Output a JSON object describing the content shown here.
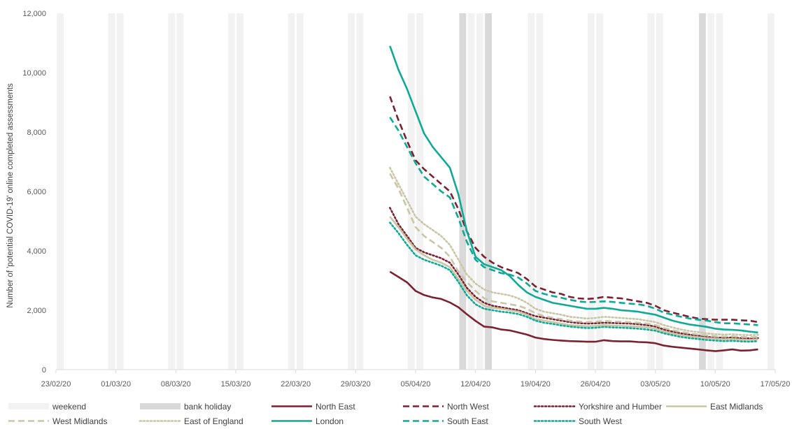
{
  "chart_data": {
    "type": "line",
    "title": "",
    "xlabel": "",
    "ylabel": "Number of 'potential COVID-19' online completed assessments",
    "ylim": [
      0,
      12000
    ],
    "yticks": [
      0,
      2000,
      4000,
      6000,
      8000,
      10000,
      12000
    ],
    "ytick_labels": [
      "0",
      "2,000",
      "4,000",
      "6,000",
      "8,000",
      "10,000",
      "12,000"
    ],
    "xlim": [
      "2020-02-23",
      "2020-05-17"
    ],
    "xticks": [
      "2020-02-23",
      "2020-03-01",
      "2020-03-08",
      "2020-03-15",
      "2020-03-22",
      "2020-03-29",
      "2020-04-05",
      "2020-04-12",
      "2020-04-19",
      "2020-04-26",
      "2020-05-03",
      "2020-05-10",
      "2020-05-17"
    ],
    "xtick_labels": [
      "23/02/20",
      "01/03/20",
      "08/03/20",
      "15/03/20",
      "22/03/20",
      "29/03/20",
      "05/04/20",
      "12/04/20",
      "19/04/20",
      "26/04/20",
      "03/05/20",
      "10/05/20",
      "17/05/20"
    ],
    "legend_position": "bottom",
    "weekend_label": "weekend",
    "weekend_color": "#f2f2f2",
    "bank_holiday_label": "bank holiday",
    "bank_holiday_color": "#d9d9d9",
    "weekends": [
      "2020-02-23",
      "2020-02-29",
      "2020-03-01",
      "2020-03-07",
      "2020-03-08",
      "2020-03-14",
      "2020-03-15",
      "2020-03-21",
      "2020-03-22",
      "2020-03-28",
      "2020-03-29",
      "2020-04-04",
      "2020-04-05",
      "2020-04-11",
      "2020-04-12",
      "2020-04-18",
      "2020-04-19",
      "2020-04-25",
      "2020-04-26",
      "2020-05-02",
      "2020-05-03",
      "2020-05-09",
      "2020-05-10",
      "2020-05-16"
    ],
    "bank_holidays": [
      "2020-04-10",
      "2020-04-13",
      "2020-05-08"
    ],
    "x": [
      "2020-04-02",
      "2020-04-03",
      "2020-04-04",
      "2020-04-05",
      "2020-04-06",
      "2020-04-07",
      "2020-04-08",
      "2020-04-09",
      "2020-04-10",
      "2020-04-11",
      "2020-04-12",
      "2020-04-13",
      "2020-04-14",
      "2020-04-15",
      "2020-04-16",
      "2020-04-17",
      "2020-04-18",
      "2020-04-19",
      "2020-04-20",
      "2020-04-21",
      "2020-04-22",
      "2020-04-23",
      "2020-04-24",
      "2020-04-25",
      "2020-04-26",
      "2020-04-27",
      "2020-04-28",
      "2020-04-29",
      "2020-04-30",
      "2020-05-01",
      "2020-05-02",
      "2020-05-03",
      "2020-05-04",
      "2020-05-05",
      "2020-05-06",
      "2020-05-07",
      "2020-05-08",
      "2020-05-09",
      "2020-05-10",
      "2020-05-11",
      "2020-05-12",
      "2020-05-13",
      "2020-05-14",
      "2020-05-15"
    ],
    "series": [
      {
        "name": "North East",
        "color": "#7b2231",
        "style": "solid",
        "values": [
          3300,
          3120,
          2940,
          2650,
          2510,
          2430,
          2380,
          2260,
          2100,
          1860,
          1640,
          1450,
          1420,
          1350,
          1320,
          1250,
          1180,
          1080,
          1030,
          1000,
          980,
          960,
          950,
          940,
          940,
          990,
          960,
          950,
          950,
          930,
          920,
          890,
          810,
          770,
          740,
          710,
          680,
          650,
          620,
          650,
          680,
          640,
          650,
          680
        ]
      },
      {
        "name": "North West",
        "color": "#7b2231",
        "style": "dash",
        "values": [
          9200,
          8400,
          7700,
          7050,
          6750,
          6500,
          6250,
          6000,
          5400,
          4650,
          4100,
          3800,
          3600,
          3450,
          3350,
          3250,
          3050,
          2800,
          2700,
          2600,
          2550,
          2450,
          2400,
          2380,
          2400,
          2450,
          2420,
          2400,
          2350,
          2300,
          2250,
          2150,
          2000,
          1920,
          1850,
          1780,
          1720,
          1700,
          1680,
          1680,
          1680,
          1660,
          1650,
          1600
        ]
      },
      {
        "name": "Yorkshire and Humber",
        "color": "#7b2231",
        "style": "dot",
        "values": [
          5450,
          4900,
          4500,
          4100,
          3950,
          3850,
          3750,
          3600,
          3200,
          2750,
          2450,
          2250,
          2150,
          2100,
          2050,
          2000,
          1900,
          1800,
          1750,
          1700,
          1650,
          1600,
          1570,
          1550,
          1560,
          1580,
          1570,
          1560,
          1550,
          1530,
          1500,
          1450,
          1350,
          1280,
          1220,
          1180,
          1140,
          1100,
          1080,
          1070,
          1080,
          1060,
          1050,
          1060
        ]
      },
      {
        "name": "East Midlands",
        "color": "#c8c6a6",
        "style": "solid",
        "values": [
          5150,
          4800,
          4400,
          4050,
          3850,
          3700,
          3600,
          3450,
          3050,
          2650,
          2350,
          2150,
          2080,
          2050,
          2000,
          1950,
          1850,
          1700,
          1650,
          1600,
          1550,
          1500,
          1480,
          1460,
          1470,
          1500,
          1480,
          1470,
          1460,
          1450,
          1420,
          1380,
          1280,
          1220,
          1160,
          1120,
          1090,
          1060,
          1040,
          1020,
          1030,
          1010,
          1000,
          1020
        ]
      },
      {
        "name": "West Midlands",
        "color": "#c8c6a6",
        "style": "dash",
        "values": [
          6600,
          6100,
          5450,
          4800,
          4500,
          4300,
          4100,
          3800,
          3300,
          2950,
          2650,
          2400,
          2300,
          2250,
          2200,
          2150,
          2050,
          1900,
          1800,
          1750,
          1700,
          1650,
          1620,
          1600,
          1610,
          1640,
          1620,
          1610,
          1600,
          1580,
          1550,
          1500,
          1400,
          1330,
          1270,
          1220,
          1180,
          1150,
          1120,
          1110,
          1120,
          1100,
          1090,
          1100
        ]
      },
      {
        "name": "East of England",
        "color": "#c8c6a6",
        "style": "dot",
        "values": [
          6800,
          6250,
          5700,
          5150,
          4900,
          4700,
          4500,
          4200,
          3700,
          3200,
          2900,
          2700,
          2600,
          2550,
          2500,
          2400,
          2250,
          2050,
          1950,
          1900,
          1850,
          1780,
          1750,
          1720,
          1740,
          1780,
          1760,
          1740,
          1720,
          1700,
          1650,
          1600,
          1500,
          1420,
          1350,
          1300,
          1260,
          1220,
          1190,
          1180,
          1190,
          1170,
          1160,
          1170
        ]
      },
      {
        "name": "London",
        "color": "#10a995",
        "style": "solid",
        "values": [
          10900,
          10100,
          9450,
          8700,
          7950,
          7500,
          7150,
          6800,
          5900,
          4650,
          3800,
          3550,
          3450,
          3350,
          3150,
          2850,
          2600,
          2450,
          2350,
          2250,
          2200,
          2150,
          2100,
          2050,
          2050,
          2080,
          2050,
          2000,
          1980,
          1950,
          1900,
          1850,
          1750,
          1650,
          1580,
          1520,
          1480,
          1440,
          1380,
          1350,
          1340,
          1320,
          1280,
          1250
        ]
      },
      {
        "name": "South East",
        "color": "#10a995",
        "style": "dash",
        "values": [
          8500,
          8050,
          7500,
          6950,
          6500,
          6250,
          6000,
          5800,
          5100,
          4300,
          3700,
          3450,
          3350,
          3250,
          3200,
          3100,
          2900,
          2650,
          2550,
          2480,
          2420,
          2350,
          2300,
          2270,
          2280,
          2300,
          2280,
          2250,
          2220,
          2200,
          2150,
          2050,
          1920,
          1850,
          1780,
          1720,
          1680,
          1650,
          1600,
          1560,
          1560,
          1540,
          1520,
          1500
        ]
      },
      {
        "name": "South West",
        "color": "#10a995",
        "style": "dot",
        "values": [
          4950,
          4600,
          4200,
          3850,
          3700,
          3600,
          3500,
          3350,
          2950,
          2500,
          2200,
          2050,
          2000,
          1950,
          1920,
          1870,
          1780,
          1650,
          1580,
          1540,
          1490,
          1450,
          1420,
          1400,
          1410,
          1440,
          1420,
          1410,
          1400,
          1380,
          1350,
          1310,
          1220,
          1160,
          1100,
          1060,
          1030,
          1000,
          980,
          960,
          970,
          950,
          940,
          960
        ]
      }
    ]
  }
}
